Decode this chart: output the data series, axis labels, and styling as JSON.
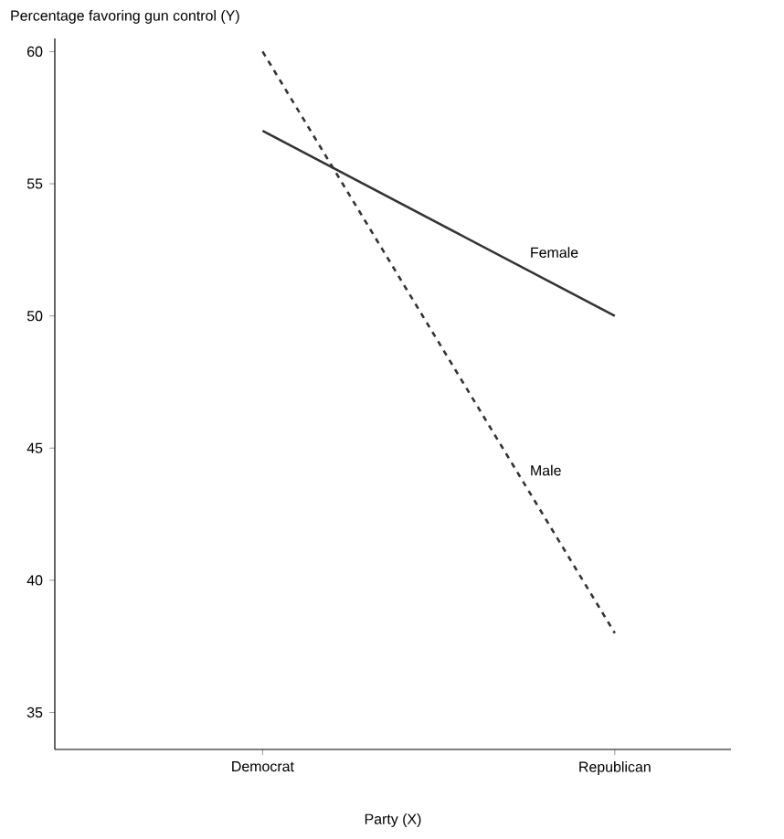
{
  "chart_data": {
    "type": "line",
    "xlabel": "Party (X)",
    "ylabel": "Percentage favoring gun control (Y)",
    "categories": [
      "Democrat",
      "Republican"
    ],
    "series": [
      {
        "name": "Female",
        "color": "#333333",
        "values": [
          57,
          50
        ],
        "line_style": "solid"
      },
      {
        "name": "Male",
        "color": "#333333",
        "values": [
          60,
          38
        ],
        "line_style": "dashed"
      }
    ],
    "ylim": [
      33.6,
      60.5
    ],
    "yticks": [
      35,
      40,
      45,
      50,
      55,
      60
    ],
    "grid": false,
    "legend": false,
    "marker": "none"
  }
}
